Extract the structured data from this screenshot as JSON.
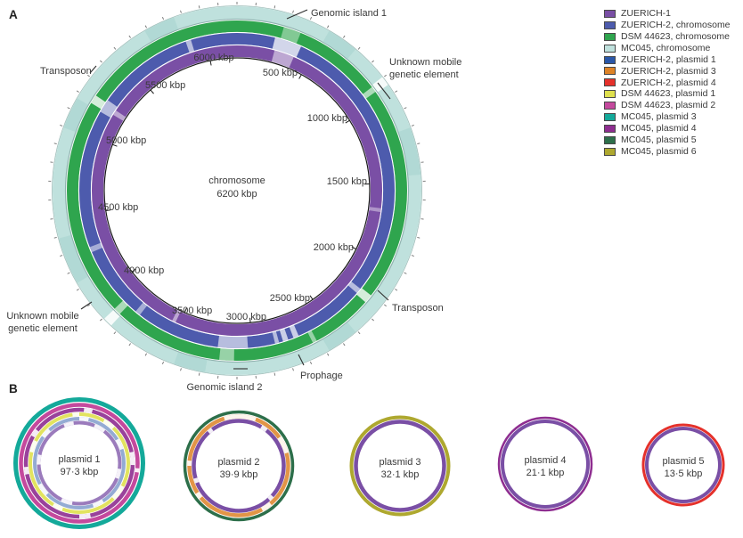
{
  "panel_a": {
    "label": "A",
    "center": {
      "line1": "chromosome",
      "line2": "6200 kbp"
    },
    "ticks": [
      "500 kbp",
      "1000 kbp",
      "1500 kbp",
      "2000 kbp",
      "2500 kbp",
      "3000 kbp",
      "3500 kbp",
      "4000 kbp",
      "4500 kbp",
      "5000 kbp",
      "5500 kbp",
      "6000 kbp"
    ],
    "annotations": {
      "genomic_island_1": "Genomic island 1",
      "unknown_mge_right_line1": "Unknown mobile",
      "unknown_mge_right_line2": "genetic element",
      "transposon_right": "Transposon",
      "prophage": "Prophage",
      "genomic_island_2": "Genomic island 2",
      "unknown_mge_left_line1": "Unknown mobile",
      "unknown_mge_left_line2": "genetic element",
      "transposon_left": "Transposon"
    }
  },
  "legend": {
    "items": [
      {
        "label": "ZUERICH-1",
        "color": "#7a4fa5"
      },
      {
        "label": "ZUERICH-2, chromosome",
        "color": "#4d5bad"
      },
      {
        "label": "DSM 44623, chromosome",
        "color": "#2fa54e"
      },
      {
        "label": "MC045, chromosome",
        "color": "#bfe1dd"
      },
      {
        "label": "ZUERICH-2, plasmid 1",
        "color": "#2a57a8"
      },
      {
        "label": "ZUERICH-2, plasmid 3",
        "color": "#dd8327"
      },
      {
        "label": "ZUERICH-2, plasmid 4",
        "color": "#e5312b"
      },
      {
        "label": "DSM 44623, plasmid 1",
        "color": "#dfe04e"
      },
      {
        "label": "DSM 44623, plasmid 2",
        "color": "#c4499d"
      },
      {
        "label": "MC045, plasmid 3",
        "color": "#14a99a"
      },
      {
        "label": "MC045, plasmid 4",
        "color": "#8e2d90"
      },
      {
        "label": "MC045, plasmid 5",
        "color": "#2d6f4a"
      },
      {
        "label": "MC045, plasmid 6",
        "color": "#aea82f"
      }
    ]
  },
  "panel_b": {
    "label": "B",
    "plasmids": [
      {
        "name": "plasmid 1",
        "size": "97·3 kbp"
      },
      {
        "name": "plasmid 2",
        "size": "39·9 kbp"
      },
      {
        "name": "plasmid 3",
        "size": "32·1 kbp"
      },
      {
        "name": "plasmid 4",
        "size": "21·1 kbp"
      },
      {
        "name": "plasmid 5",
        "size": "13·5 kbp"
      }
    ]
  },
  "colors": {
    "zuerich1": "#7a4fa5",
    "zuerich2_chromosome": "#4d5bad",
    "dsm44623_chromosome": "#2fa54e",
    "mc045_chromosome": "#bfe1dd",
    "zuerich2_plasmid1": "#2a57a8",
    "zuerich2_plasmid3": "#dd8327",
    "zuerich2_plasmid4": "#e5312b",
    "dsm44623_plasmid1": "#dfe04e",
    "dsm44623_plasmid2": "#c4499d",
    "mc045_plasmid3": "#14a99a",
    "mc045_plasmid4": "#8e2d90",
    "mc045_plasmid5": "#2d6f4a",
    "mc045_plasmid6": "#aea82f"
  }
}
